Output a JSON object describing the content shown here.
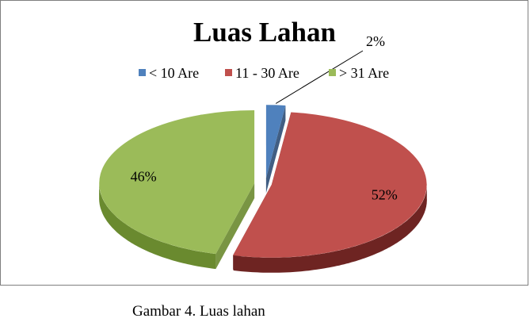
{
  "chart_data": {
    "type": "pie",
    "title": "Luas Lahan",
    "legend_position": "top",
    "categories": [
      "< 10 Are",
      "11 - 30 Are",
      "> 31 Are"
    ],
    "values": [
      2,
      52,
      46
    ],
    "data_labels": [
      "2%",
      "52%",
      "46%"
    ],
    "colors": [
      "#4f81bd",
      "#c0504d",
      "#9bbb59"
    ],
    "side_colors": [
      "#2c4d75",
      "#6e2422",
      "#6a8a2f"
    ],
    "exploded": true,
    "three_d": true
  },
  "caption": "Gambar 4. Luas lahan"
}
